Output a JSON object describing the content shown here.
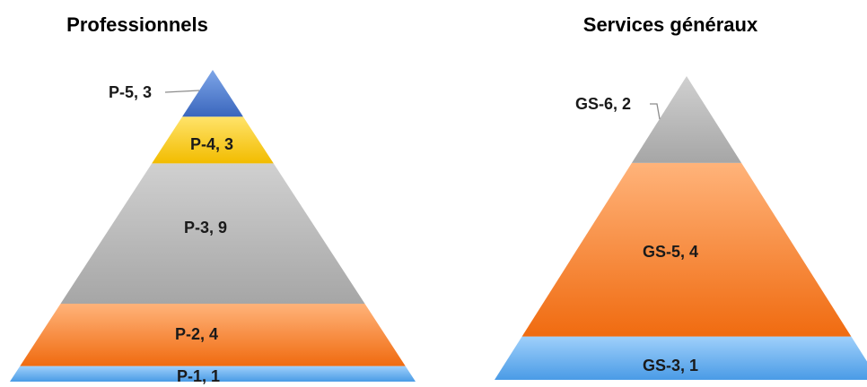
{
  "chart_data": [
    {
      "type": "pyramid",
      "title": "Professionnels",
      "categories": [
        "P-1",
        "P-2",
        "P-3",
        "P-4",
        "P-5"
      ],
      "values": [
        1,
        4,
        9,
        3,
        3
      ],
      "labels": [
        "P-1, 1",
        "P-2, 4",
        "P-3, 9",
        "P-4, 3",
        "P-5, 3"
      ],
      "colors": [
        "#5aa9ec",
        "#f5822f",
        "#b3b3b3",
        "#f7c600",
        "#4472c4"
      ]
    },
    {
      "type": "pyramid",
      "title": "Services généraux",
      "categories": [
        "GS-3",
        "GS-5",
        "GS-6"
      ],
      "values": [
        1,
        4,
        2
      ],
      "labels": [
        "GS-3, 1",
        "GS-5, 4",
        "GS-6, 2"
      ],
      "colors": [
        "#5aa9ec",
        "#f5822f",
        "#b3b3b3"
      ]
    }
  ]
}
